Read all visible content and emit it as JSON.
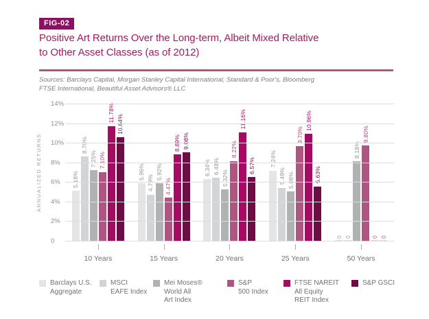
{
  "figure": {
    "tag": "FIG-02",
    "title_line1": "Positive Art Returns Over the Long-term, Albeit Mixed Relative",
    "title_line2": "to Other Asset Classes (as of 2012)",
    "sources_line1": "Sources: Barclays Capital, Morgan Stanley Capital International, Standard & Poor's, Bloomberg",
    "sources_line2": "FTSE International, Beautiful Asset Advisors® LLC"
  },
  "colors": {
    "badge_bg": "#8c1164",
    "title_text": "#a21a62",
    "divider": "#a95983",
    "gridline": "#dcdddd",
    "axis_text": "#8d9194",
    "category_text": "#6e7175"
  },
  "chart_data": {
    "type": "bar",
    "title": "Positive Art Returns Over the Long-term, Albeit Mixed Relative to Other Asset Classes (as of 2012)",
    "xlabel": "",
    "ylabel": "ANNUALIZED RETURNS",
    "ylim": [
      0,
      14
    ],
    "grid": true,
    "legend_position": "bottom",
    "yticks": [
      {
        "value": 14,
        "label": "14%"
      },
      {
        "value": 12,
        "label": "12%"
      },
      {
        "value": 10,
        "label": "10%"
      },
      {
        "value": 8,
        "label": "8%"
      },
      {
        "value": 6,
        "label": "6%"
      },
      {
        "value": 4,
        "label": "4%"
      },
      {
        "value": 2,
        "label": "2%"
      },
      {
        "value": 0,
        "label": "0"
      }
    ],
    "categories": [
      "10 Years",
      "15 Years",
      "20 Years",
      "25 Years",
      "50 Years"
    ],
    "series": [
      {
        "name": "Barclays U.S. Aggregate",
        "legend_lines": [
          "Barclays U.S.",
          "Aggregate"
        ],
        "color": "#e5e5e5",
        "label_color": "#909396",
        "zero_label_color": "#9a9da0",
        "zero_stub_color": "#dedede",
        "values": [
          5.18,
          5.96,
          6.34,
          7.24,
          0
        ],
        "labels": [
          "5.18%",
          "5.96%",
          "6.34%",
          "7.24%",
          "0"
        ]
      },
      {
        "name": "MSCI EAFE Index",
        "legend_lines": [
          "MSCI",
          "EAFE Index"
        ],
        "color": "#d3d4d5",
        "label_color": "#909396",
        "zero_label_color": "#9a9da0",
        "zero_stub_color": "#dedede",
        "values": [
          8.7,
          4.79,
          6.48,
          5.49,
          0
        ],
        "labels": [
          "8.70%",
          "4.79%",
          "6.48%",
          "5.49%",
          "0"
        ]
      },
      {
        "name": "Mei Moses® World All Art Index",
        "legend_lines": [
          "Mei Moses®",
          "World All",
          "Art Index"
        ],
        "color": "#b1b2b4",
        "label_color": "#909396",
        "zero_label_color": "#9a9da0",
        "zero_stub_color": "#dedede",
        "values": [
          7.25,
          5.92,
          5.32,
          5.08,
          8.18
        ],
        "labels": [
          "7.25%",
          "5.92%",
          "5.32%",
          "5.08%",
          "8.18%"
        ]
      },
      {
        "name": "S&P 500 Index",
        "legend_lines": [
          "S&P",
          "500 Index"
        ],
        "color": "#ae5581",
        "label_color": "#a84478",
        "zero_label_color": "#b25c86",
        "zero_stub_color": "#e6d4de",
        "values": [
          7.1,
          4.47,
          8.22,
          9.7,
          9.8
        ],
        "labels": [
          "7.10%",
          "4.47%",
          "8.22%",
          "9.70%",
          "9.80%"
        ]
      },
      {
        "name": "FTSE NAREIT All Equity REIT Index",
        "legend_lines": [
          "FTSE NAREIT",
          "All Equity",
          "REIT Index"
        ],
        "color": "#a50b63",
        "label_color": "#a50b63",
        "zero_label_color": "#b25c86",
        "zero_stub_color": "#e6d4de",
        "values": [
          11.78,
          8.89,
          11.16,
          10.96,
          0
        ],
        "labels": [
          "11.78%",
          "8.89%",
          "11.16%",
          "10.96%",
          "0"
        ]
      },
      {
        "name": "S&P GSCI",
        "legend_lines": [
          "S&P GSCI"
        ],
        "color": "#6e0c45",
        "label_color": "#6e0c45",
        "zero_label_color": "#b25c86",
        "zero_stub_color": "#e6d4de",
        "values": [
          10.64,
          9.08,
          6.57,
          5.63,
          0
        ],
        "labels": [
          "10.64%",
          "9.08%",
          "6.57%",
          "5.63%",
          "0"
        ]
      }
    ]
  }
}
